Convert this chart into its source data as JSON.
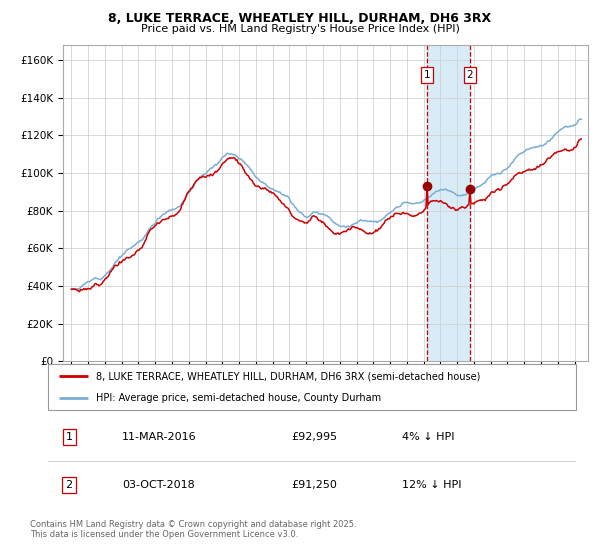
{
  "title1": "8, LUKE TERRACE, WHEATLEY HILL, DURHAM, DH6 3RX",
  "title2": "Price paid vs. HM Land Registry's House Price Index (HPI)",
  "legend_line1": "8, LUKE TERRACE, WHEATLEY HILL, DURHAM, DH6 3RX (semi-detached house)",
  "legend_line2": "HPI: Average price, semi-detached house, County Durham",
  "transaction1_date": "11-MAR-2016",
  "transaction1_price": "£92,995",
  "transaction1_hpi": "4% ↓ HPI",
  "transaction2_date": "03-OCT-2018",
  "transaction2_price": "£91,250",
  "transaction2_hpi": "12% ↓ HPI",
  "footer": "Contains HM Land Registry data © Crown copyright and database right 2025.\nThis data is licensed under the Open Government Licence v3.0.",
  "line1_color": "#cc0000",
  "line2_color": "#7aadd4",
  "highlight_color": "#d8ecf8",
  "dashed_color": "#cc0000",
  "marker_color": "#990000",
  "transaction1_x": 2016.19,
  "transaction2_x": 2018.75,
  "ylim_min": 0,
  "ylim_max": 168000,
  "xlim_min": 1994.5,
  "xlim_max": 2025.8
}
